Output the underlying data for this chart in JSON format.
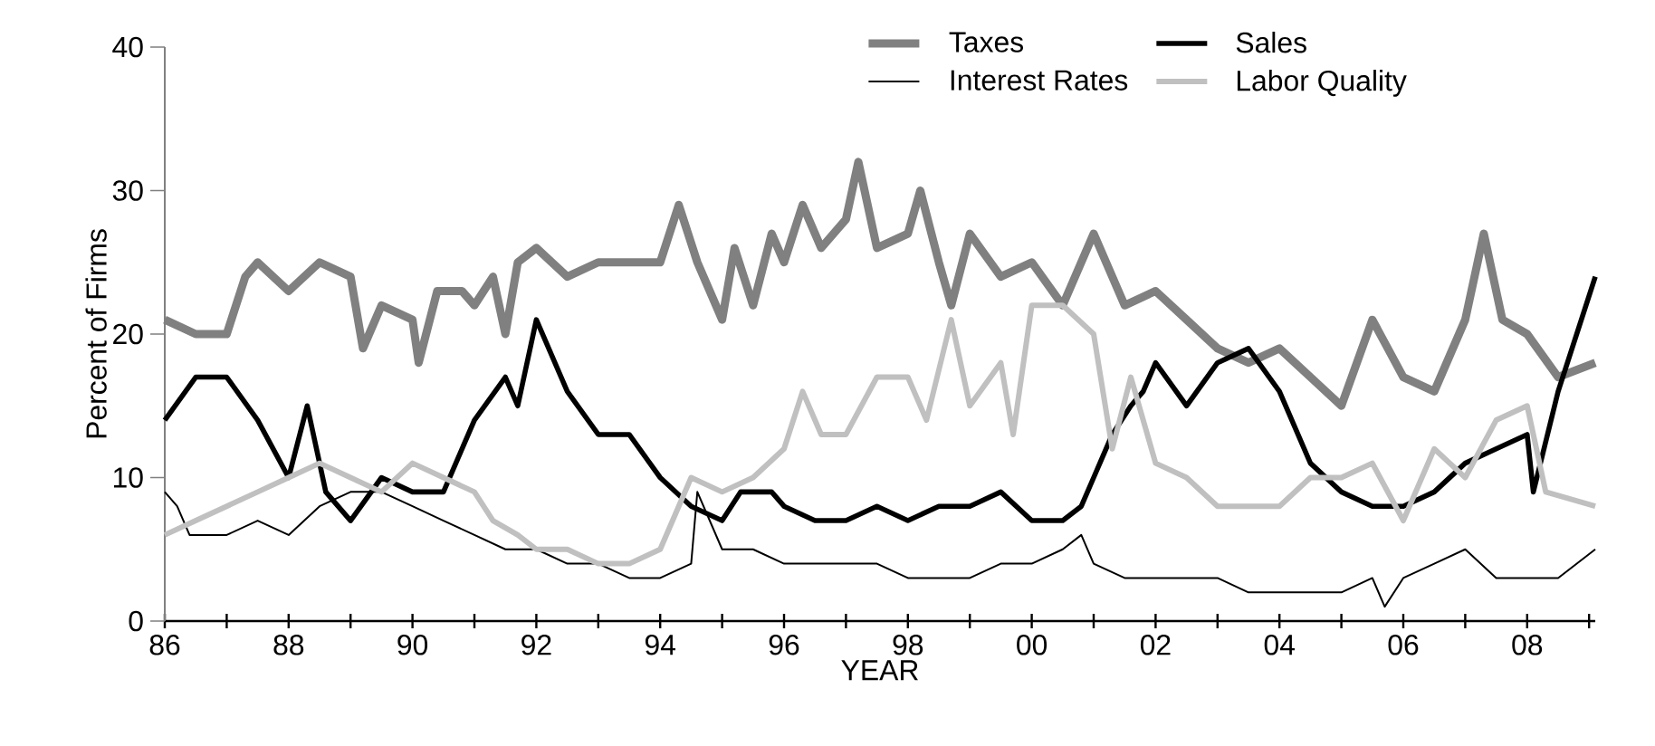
{
  "chart_data": {
    "type": "line",
    "xlabel": "YEAR",
    "ylabel": "Percent of Firms",
    "legend": "top",
    "grid": false,
    "marker": "none",
    "line_style": "solid",
    "xlim": [
      1986,
      2009.1
    ],
    "ylim": [
      0,
      40
    ],
    "yticks": [
      0,
      10,
      20,
      30,
      40
    ],
    "xticks": [
      {
        "value": 1986,
        "label": "86"
      },
      {
        "value": 1987,
        "label": null
      },
      {
        "value": 1988,
        "label": "88"
      },
      {
        "value": 1989,
        "label": null
      },
      {
        "value": 1990,
        "label": "90"
      },
      {
        "value": 1991,
        "label": null
      },
      {
        "value": 1992,
        "label": "92"
      },
      {
        "value": 1993,
        "label": null
      },
      {
        "value": 1994,
        "label": "94"
      },
      {
        "value": 1995,
        "label": null
      },
      {
        "value": 1996,
        "label": "96"
      },
      {
        "value": 1997,
        "label": null
      },
      {
        "value": 1998,
        "label": "98"
      },
      {
        "value": 1999,
        "label": null
      },
      {
        "value": 2000,
        "label": "00"
      },
      {
        "value": 2001,
        "label": null
      },
      {
        "value": 2002,
        "label": "02"
      },
      {
        "value": 2003,
        "label": null
      },
      {
        "value": 2004,
        "label": "04"
      },
      {
        "value": 2005,
        "label": null
      },
      {
        "value": 2006,
        "label": "06"
      },
      {
        "value": 2007,
        "label": null
      },
      {
        "value": 2008,
        "label": "08"
      },
      {
        "value": 2009,
        "label": null
      }
    ],
    "series": [
      {
        "name": "Taxes",
        "color": "#808080",
        "x": [
          1986,
          1986.5,
          1987,
          1987.3,
          1987.5,
          1988,
          1988.5,
          1989,
          1989.2,
          1989.5,
          1990,
          1990.1,
          1990.4,
          1990.8,
          1991,
          1991.3,
          1991.5,
          1991.7,
          1992,
          1992.5,
          1993,
          1993.5,
          1994,
          1994.3,
          1994.6,
          1995,
          1995.2,
          1995.5,
          1995.8,
          1996,
          1996.3,
          1996.6,
          1997,
          1997.2,
          1997.5,
          1998,
          1998.2,
          1998.5,
          1998.7,
          1999,
          1999.5,
          2000,
          2000.5,
          2001,
          2001.5,
          2002,
          2002.5,
          2003,
          2003.5,
          2004,
          2004.5,
          2005,
          2005.5,
          2006,
          2006.5,
          2007,
          2007.3,
          2007.6,
          2008,
          2008.5,
          2009.1
        ],
        "values": [
          21,
          20,
          20,
          24,
          25,
          23,
          25,
          24,
          19,
          22,
          21,
          18,
          23,
          23,
          22,
          24,
          20,
          25,
          26,
          24,
          25,
          25,
          25,
          29,
          25,
          21,
          26,
          22,
          27,
          25,
          29,
          26,
          28,
          32,
          26,
          27,
          30,
          25,
          22,
          27,
          24,
          25,
          22,
          27,
          22,
          23,
          21,
          19,
          18,
          19,
          17,
          15,
          21,
          17,
          16,
          21,
          27,
          21,
          20,
          17,
          18
        ]
      },
      {
        "name": "Sales",
        "color": "#000000",
        "x": [
          1986,
          1986.5,
          1987,
          1987.5,
          1988,
          1988.3,
          1988.6,
          1989,
          1989.5,
          1990,
          1990.5,
          1991,
          1991.5,
          1991.7,
          1992,
          1992.5,
          1993,
          1993.5,
          1994,
          1994.5,
          1995,
          1995.3,
          1995.8,
          1996,
          1996.5,
          1997,
          1997.5,
          1998,
          1998.5,
          1999,
          1999.5,
          2000,
          2000.5,
          2000.8,
          2001,
          2001.3,
          2001.6,
          2001.8,
          2002,
          2002.5,
          2003,
          2003.5,
          2004,
          2004.5,
          2005,
          2005.5,
          2006,
          2006.5,
          2007,
          2007.5,
          2008,
          2008.1,
          2008.5,
          2009.1
        ],
        "values": [
          14,
          17,
          17,
          14,
          10,
          15,
          9,
          7,
          10,
          9,
          9,
          14,
          17,
          15,
          21,
          16,
          13,
          13,
          10,
          8,
          7,
          9,
          9,
          8,
          7,
          7,
          8,
          7,
          8,
          8,
          9,
          7,
          7,
          8,
          10,
          13,
          15,
          16,
          18,
          15,
          18,
          19,
          16,
          11,
          9,
          8,
          8,
          9,
          11,
          12,
          13,
          9,
          16,
          24
        ]
      },
      {
        "name": "Interest Rates",
        "color": "#000000",
        "x": [
          1986,
          1986.2,
          1986.4,
          1987,
          1987.5,
          1988,
          1988.5,
          1989,
          1989.5,
          1990,
          1990.5,
          1991,
          1991.5,
          1992,
          1992.5,
          1993,
          1993.5,
          1994,
          1994.5,
          1994.6,
          1995,
          1995.5,
          1996,
          1996.5,
          1997,
          1997.5,
          1998,
          1998.5,
          1999,
          1999.5,
          2000,
          2000.5,
          2000.8,
          2001,
          2001.5,
          2002,
          2002.5,
          2003,
          2003.5,
          2004,
          2004.5,
          2005,
          2005.5,
          2005.7,
          2006,
          2006.5,
          2007,
          2007.5,
          2008,
          2008.5,
          2009.1
        ],
        "values": [
          9,
          8,
          6,
          6,
          7,
          6,
          8,
          9,
          9,
          8,
          7,
          6,
          5,
          5,
          4,
          4,
          3,
          3,
          4,
          9,
          5,
          5,
          4,
          4,
          4,
          4,
          3,
          3,
          3,
          4,
          4,
          5,
          6,
          4,
          3,
          3,
          3,
          3,
          2,
          2,
          2,
          2,
          3,
          1,
          3,
          4,
          5,
          3,
          3,
          3,
          5
        ]
      },
      {
        "name": "Labor Quality",
        "color": "#c0c0c0",
        "x": [
          1986,
          1986.5,
          1987,
          1987.5,
          1988,
          1988.5,
          1989,
          1989.5,
          1990,
          1990.5,
          1991,
          1991.3,
          1991.7,
          1992,
          1992.5,
          1993,
          1993.5,
          1994,
          1994.5,
          1995,
          1995.5,
          1996,
          1996.3,
          1996.6,
          1997,
          1997.5,
          1998,
          1998.3,
          1998.7,
          1999,
          1999.5,
          1999.7,
          2000,
          2000.5,
          2001,
          2001.3,
          2001.6,
          2002,
          2002.5,
          2003,
          2003.5,
          2004,
          2004.5,
          2005,
          2005.5,
          2006,
          2006.5,
          2007,
          2007.5,
          2008,
          2008.3,
          2009.1
        ],
        "values": [
          6,
          7,
          8,
          9,
          10,
          11,
          10,
          9,
          11,
          10,
          9,
          7,
          6,
          5,
          5,
          4,
          4,
          5,
          10,
          9,
          10,
          12,
          16,
          13,
          13,
          17,
          17,
          14,
          21,
          15,
          18,
          13,
          22,
          22,
          20,
          12,
          17,
          11,
          10,
          8,
          8,
          8,
          10,
          10,
          11,
          7,
          12,
          10,
          14,
          15,
          9,
          8
        ]
      }
    ]
  }
}
